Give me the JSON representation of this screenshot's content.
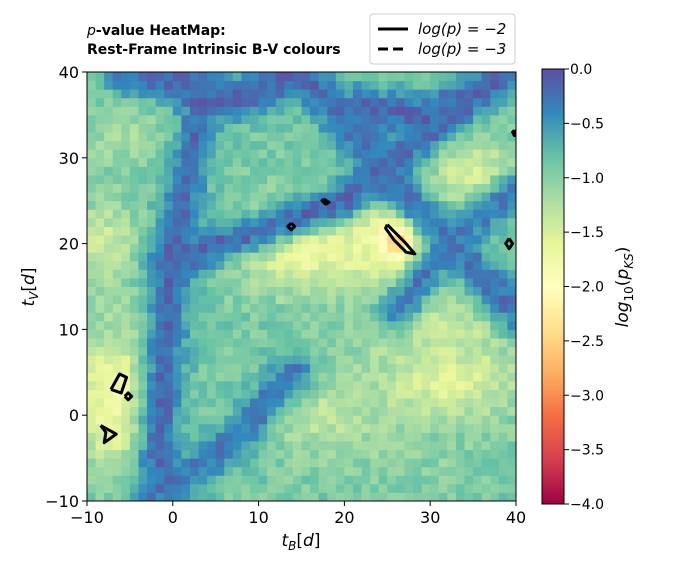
{
  "chart_data": {
    "type": "heatmap",
    "title_lines": [
      "p-value HeatMap:",
      "Rest-Frame Intrinsic B-V colours"
    ],
    "xlabel": "t_B[d]",
    "ylabel": "t_V[d]",
    "xlim": [
      -10,
      40
    ],
    "ylim": [
      -10,
      40
    ],
    "x_ticks": [
      -10,
      0,
      10,
      20,
      30,
      40
    ],
    "y_ticks": [
      -10,
      0,
      10,
      20,
      30,
      40
    ],
    "x_tick_labels": [
      "−10",
      "0",
      "10",
      "20",
      "30",
      "40"
    ],
    "y_tick_labels": [
      "−10",
      "0",
      "10",
      "20",
      "30",
      "40"
    ],
    "colorbar": {
      "label": "log10(p_KS)",
      "label_main": "log",
      "label_sub": "10",
      "label_arg": "(p",
      "label_arg_sub": "KS",
      "label_close": ")",
      "range": [
        -4.0,
        0.0
      ],
      "ticks": [
        0.0,
        -0.5,
        -1.0,
        -1.5,
        -2.0,
        -2.5,
        -3.0,
        -3.5,
        -4.0
      ],
      "tick_labels": [
        "0.0",
        "−0.5",
        "−1.0",
        "−1.5",
        "−2.0",
        "−2.5",
        "−3.0",
        "−3.5",
        "−4.0"
      ],
      "colormap": "Spectral",
      "colormap_stops": [
        "#5e4fa2",
        "#3288bd",
        "#66c2a5",
        "#abdda4",
        "#e6f598",
        "#ffffbf",
        "#fee08b",
        "#fdae61",
        "#f46d43",
        "#d53e4f",
        "#9e0142"
      ]
    },
    "legend": {
      "placement": "top-right",
      "entries": [
        {
          "label": "log(p) = −2",
          "style": "solid",
          "level": -2
        },
        {
          "label": "log(p) = −3",
          "style": "dashed",
          "level": -3
        }
      ]
    },
    "regions": [
      {
        "name": "diag-lower",
        "points": [
          [
            -2,
            -10
          ],
          [
            0,
            20
          ],
          [
            4,
            38
          ]
        ],
        "value": -0.2
      },
      {
        "name": "diag-cross-a",
        "points": [
          [
            0,
            18
          ],
          [
            20,
            25
          ],
          [
            33,
            36
          ]
        ],
        "value": -0.2
      },
      {
        "name": "diag-cross-b",
        "points": [
          [
            15,
            40
          ],
          [
            25,
            28
          ],
          [
            40,
            12
          ]
        ],
        "value": -0.25
      },
      {
        "name": "diag-right",
        "points": [
          [
            26,
            12
          ],
          [
            33,
            21
          ],
          [
            40,
            26
          ]
        ],
        "value": -0.3
      },
      {
        "name": "diag-bottom",
        "points": [
          [
            -2,
            -10
          ],
          [
            8,
            -2
          ],
          [
            14,
            5
          ]
        ],
        "value": -0.3
      },
      {
        "name": "top-band",
        "points": [
          [
            -6,
            40
          ],
          [
            8,
            37
          ],
          [
            15,
            40
          ]
        ],
        "value": -0.2
      },
      {
        "name": "top-right-band",
        "points": [
          [
            22,
            36
          ],
          [
            30,
            35
          ],
          [
            40,
            40
          ]
        ],
        "value": -0.2
      }
    ],
    "blobs": [
      {
        "name": "center-ridge",
        "center": [
          15,
          20
        ],
        "radius": [
          8,
          5
        ],
        "value": -1.8
      },
      {
        "name": "right-ridge",
        "center": [
          27,
          20
        ],
        "radius": [
          7,
          5
        ],
        "value": -1.9
      },
      {
        "name": "right-peak",
        "center": [
          26.5,
          20.5
        ],
        "radius": [
          2.0,
          2.0
        ],
        "value": -2.6
      },
      {
        "name": "left-low",
        "center": [
          -7,
          2
        ],
        "radius": [
          4,
          8
        ],
        "value": -1.8
      },
      {
        "name": "left-top",
        "center": [
          -8,
          20
        ],
        "radius": [
          4,
          5
        ],
        "value": -1.4
      },
      {
        "name": "lower-right",
        "center": [
          32,
          4
        ],
        "radius": [
          8,
          5
        ],
        "value": -1.6
      },
      {
        "name": "mid-right",
        "center": [
          30,
          10
        ],
        "radius": [
          8,
          4
        ],
        "value": -1.4
      },
      {
        "name": "upper-right",
        "center": [
          35,
          28
        ],
        "radius": [
          5,
          4
        ],
        "value": -1.5
      },
      {
        "name": "top-left",
        "center": [
          -6,
          33
        ],
        "radius": [
          4,
          4
        ],
        "value": -1.2
      },
      {
        "name": "bottom-right",
        "center": [
          28,
          -5
        ],
        "radius": [
          9,
          4
        ],
        "value": -1.0
      },
      {
        "name": "center-bottom",
        "center": [
          18,
          0
        ],
        "radius": [
          7,
          5
        ],
        "value": -1.3
      }
    ],
    "contours_minus2": [
      [
        [
          -8.4,
          -1.2
        ],
        [
          -7.8,
          -2.0
        ],
        [
          -8.0,
          -3.2
        ],
        [
          -6.6,
          -2.2
        ],
        [
          -8.4,
          -1.2
        ]
      ],
      [
        [
          -7.2,
          3.0
        ],
        [
          -6.2,
          4.8
        ],
        [
          -5.4,
          4.4
        ],
        [
          -6.0,
          2.6
        ],
        [
          -7.2,
          3.0
        ]
      ],
      [
        [
          -5.6,
          2.2
        ],
        [
          -5.2,
          1.8
        ],
        [
          -4.8,
          2.2
        ],
        [
          -5.2,
          2.6
        ],
        [
          -5.6,
          2.2
        ]
      ],
      [
        [
          13.8,
          22.4
        ],
        [
          14.2,
          22.0
        ],
        [
          13.8,
          21.6
        ],
        [
          13.4,
          22.0
        ],
        [
          13.8,
          22.4
        ]
      ],
      [
        [
          17.6,
          25.2
        ],
        [
          18.2,
          24.8
        ],
        [
          17.8,
          24.6
        ],
        [
          17.4,
          25.0
        ],
        [
          17.6,
          25.2
        ]
      ],
      [
        [
          25.0,
          22.2
        ],
        [
          27.0,
          20.2
        ],
        [
          28.2,
          18.8
        ],
        [
          27.2,
          19.0
        ],
        [
          25.8,
          20.4
        ],
        [
          24.8,
          21.8
        ],
        [
          25.0,
          22.2
        ]
      ],
      [
        [
          39.2,
          20.6
        ],
        [
          39.6,
          20.0
        ],
        [
          39.2,
          19.4
        ],
        [
          38.8,
          20.0
        ],
        [
          39.2,
          20.6
        ]
      ],
      [
        [
          39.8,
          33.2
        ],
        [
          40.2,
          32.8
        ],
        [
          39.8,
          32.6
        ],
        [
          39.6,
          33.0
        ],
        [
          39.8,
          33.2
        ]
      ]
    ],
    "contours_minus3": []
  }
}
